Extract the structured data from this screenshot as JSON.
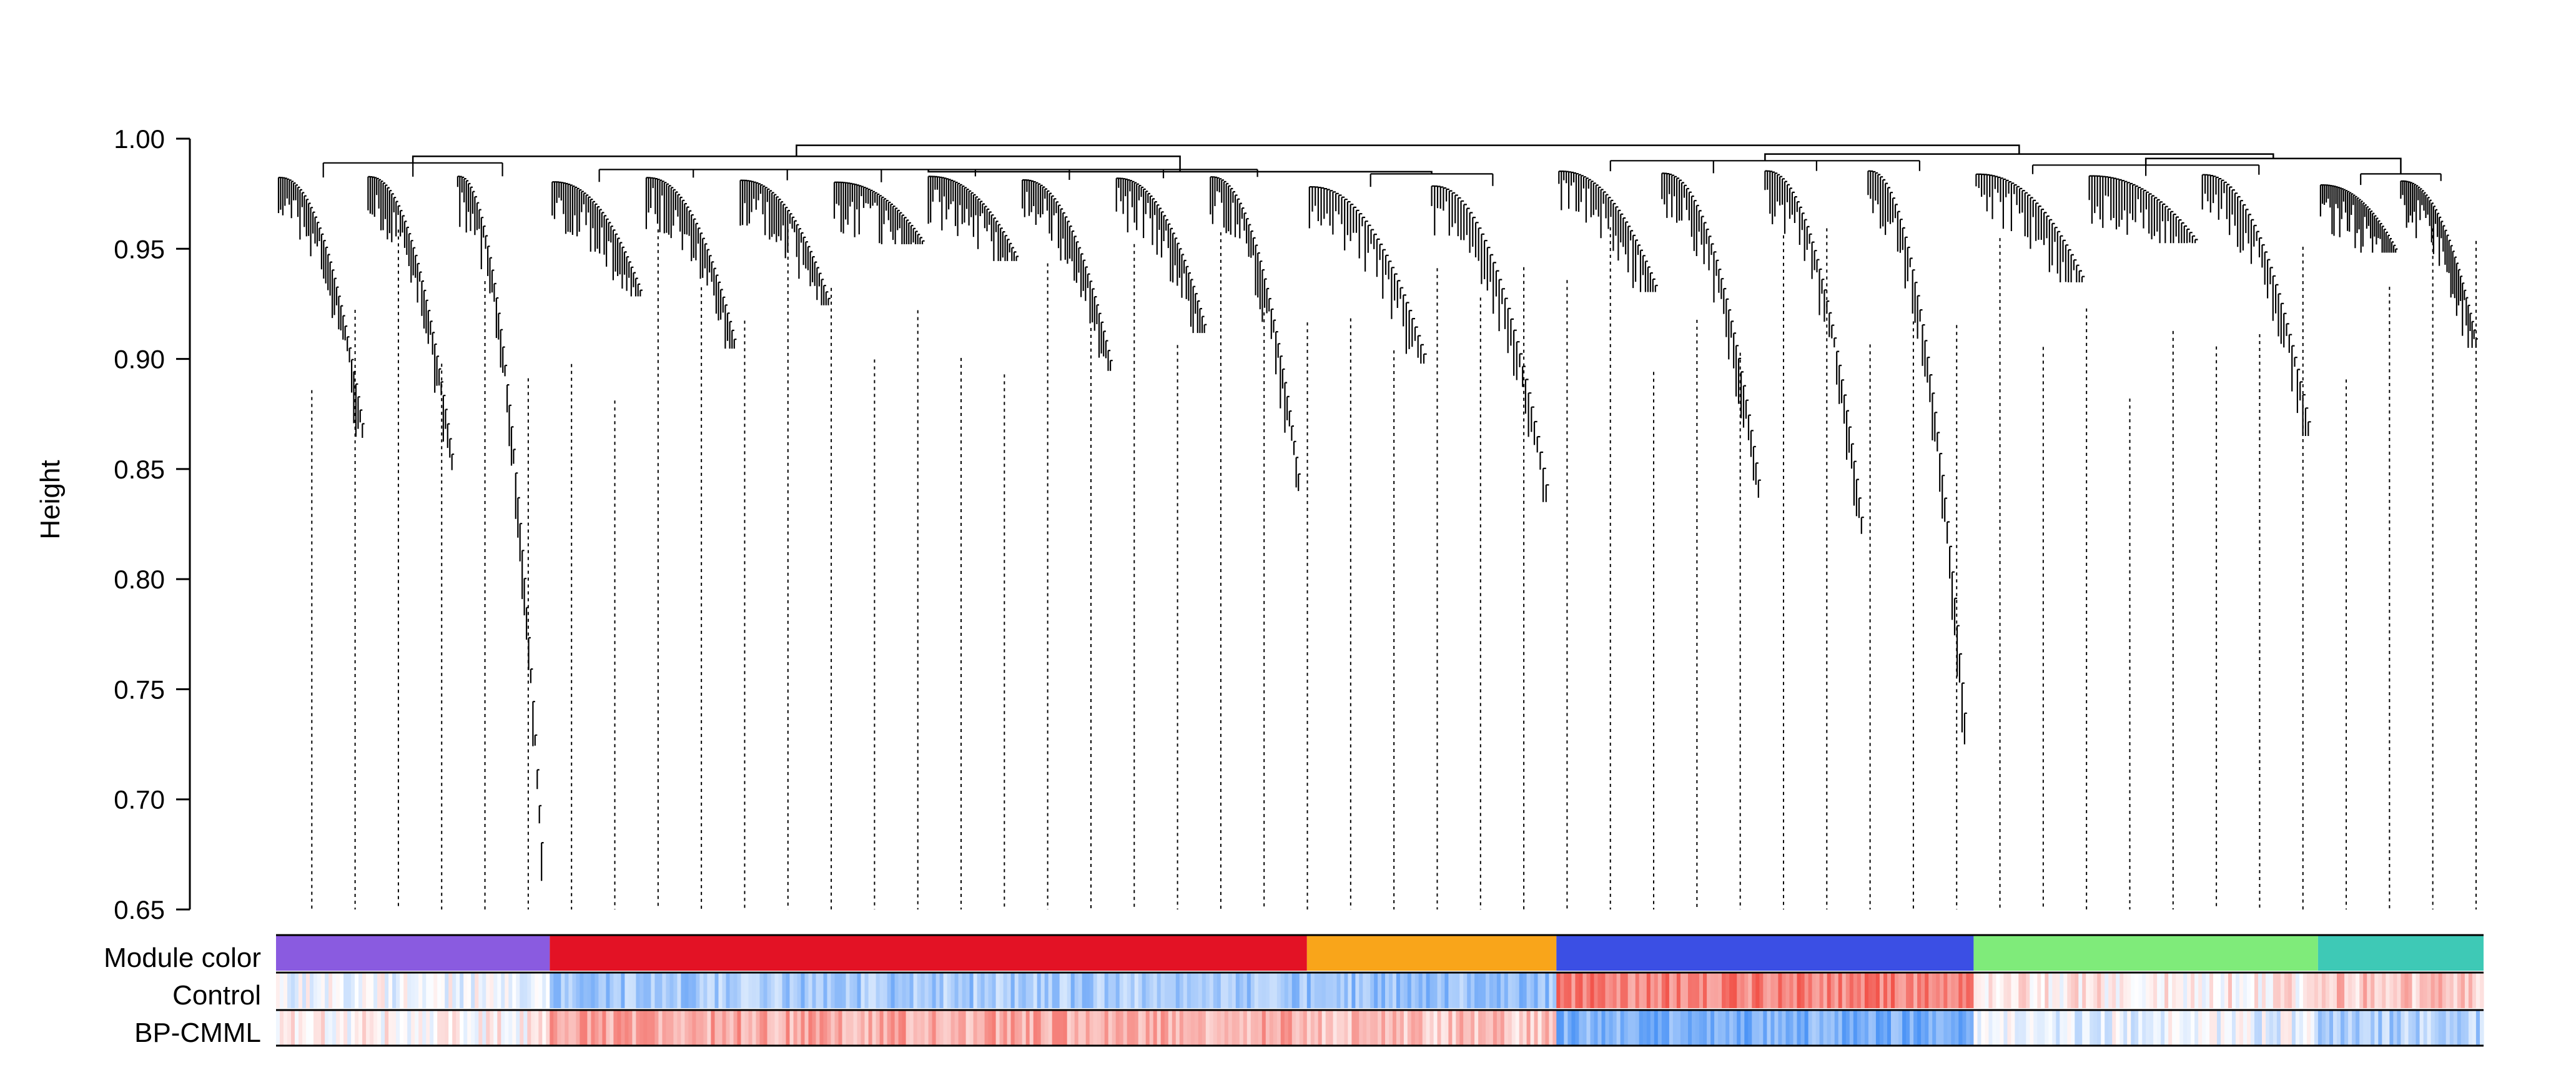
{
  "chart_data": {
    "type": "dendrogram",
    "ylabel": "Height",
    "ylim": [
      0.65,
      1.0
    ],
    "yticks": [
      "0.65",
      "0.70",
      "0.75",
      "0.80",
      "0.85",
      "0.90",
      "0.95",
      "1.00"
    ],
    "row_labels": {
      "module": "Module color",
      "control": "Control",
      "bpcmml": "BP-CMML"
    },
    "modules": [
      {
        "color": "#8a5be0",
        "x_start": 0.0,
        "x_end": 0.124,
        "min_height": 0.663,
        "top_height": 0.989,
        "control_shade": -0.05,
        "bpcmml_shade": 0.05
      },
      {
        "color": "#e31225",
        "x_start": 0.124,
        "x_end": 0.467,
        "min_height": 0.84,
        "top_height": 0.986,
        "control_shade": -0.45,
        "bpcmml_shade": 0.45
      },
      {
        "color": "#f9a51a",
        "x_start": 0.467,
        "x_end": 0.58,
        "min_height": 0.835,
        "top_height": 0.984,
        "control_shade": -0.5,
        "bpcmml_shade": 0.3
      },
      {
        "color": "#3b4fe4",
        "x_start": 0.58,
        "x_end": 0.769,
        "min_height": 0.725,
        "top_height": 0.99,
        "control_shade": 0.65,
        "bpcmml_shade": -0.65
      },
      {
        "color": "#7feb7a",
        "x_start": 0.769,
        "x_end": 0.925,
        "min_height": 0.865,
        "top_height": 0.988,
        "control_shade": 0.1,
        "bpcmml_shade": -0.1
      },
      {
        "color": "#3ec9b6",
        "x_start": 0.925,
        "x_end": 1.0,
        "min_height": 0.905,
        "top_height": 0.984,
        "control_shade": 0.3,
        "bpcmml_shade": -0.4
      }
    ],
    "top_merges": [
      {
        "left": 0,
        "right": 1,
        "height": 0.992
      },
      {
        "left": 1,
        "right": 2,
        "height": 0.985
      },
      {
        "left": 3,
        "right": 4,
        "height": 0.993
      },
      {
        "left": 4,
        "right": 5,
        "height": 0.991
      },
      {
        "left": "A",
        "right": "B",
        "height": 0.997
      }
    ],
    "grid": false,
    "legend": "none"
  }
}
